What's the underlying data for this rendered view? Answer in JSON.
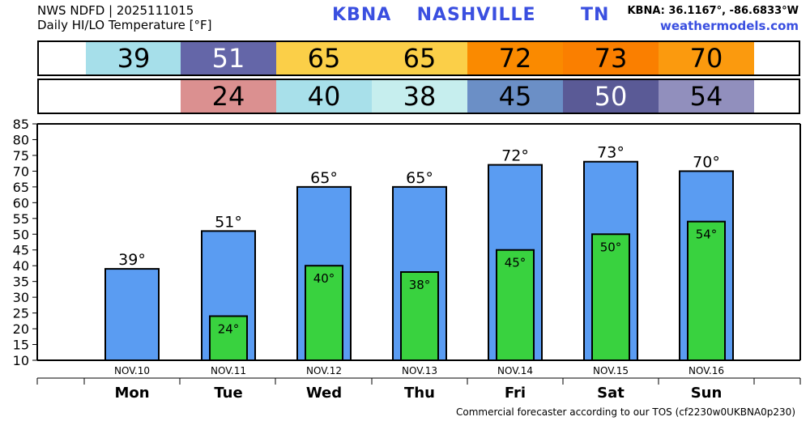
{
  "header": {
    "line1": "NWS NDFD | 2025111015",
    "line2": "Daily HI/LO Temperature [°F]",
    "station": "KBNA",
    "city": "NASHVILLE",
    "state": "TN",
    "coords": "KBNA: 36.1167°, -86.6833°W",
    "site": "weathermodels.com"
  },
  "strip_hi": [
    {
      "value": "39",
      "bg": "#a6dfea",
      "fg": "#000000"
    },
    {
      "value": "51",
      "bg": "#6466a8",
      "fg": "#ffffff"
    },
    {
      "value": "65",
      "bg": "#fbcf48",
      "fg": "#000000"
    },
    {
      "value": "65",
      "bg": "#fbcf48",
      "fg": "#000000"
    },
    {
      "value": "72",
      "bg": "#fa8a00",
      "fg": "#000000"
    },
    {
      "value": "73",
      "bg": "#fa7f00",
      "fg": "#000000"
    },
    {
      "value": "70",
      "bg": "#fb9a0e",
      "fg": "#000000"
    }
  ],
  "strip_lo": [
    {
      "value": "",
      "bg": "#ffffff",
      "fg": "#000000"
    },
    {
      "value": "24",
      "bg": "#db9090",
      "fg": "#000000"
    },
    {
      "value": "40",
      "bg": "#a8e0ea",
      "fg": "#000000"
    },
    {
      "value": "38",
      "bg": "#c6eeee",
      "fg": "#000000"
    },
    {
      "value": "45",
      "bg": "#6b8fc6",
      "fg": "#000000"
    },
    {
      "value": "50",
      "bg": "#5a5a96",
      "fg": "#ffffff"
    },
    {
      "value": "54",
      "bg": "#918fbd",
      "fg": "#000000"
    }
  ],
  "chart_data": {
    "type": "bar",
    "title": "",
    "xlabel": "",
    "ylabel": "",
    "ylim": [
      10,
      85
    ],
    "yticks": [
      10,
      15,
      20,
      25,
      30,
      35,
      40,
      45,
      50,
      55,
      60,
      65,
      70,
      75,
      80,
      85
    ],
    "categories": [
      "NOV.10",
      "NOV.11",
      "NOV.12",
      "NOV.13",
      "NOV.14",
      "NOV.15",
      "NOV.16"
    ],
    "days": [
      "Mon",
      "Tue",
      "Wed",
      "Thu",
      "Fri",
      "Sat",
      "Sun"
    ],
    "series": [
      {
        "values": [
          39,
          51,
          65,
          65,
          72,
          73,
          70
        ],
        "color": "#5a9cf2"
      },
      {
        "values": [
          null,
          24,
          40,
          38,
          45,
          50,
          54
        ],
        "color": "#39d23f"
      }
    ],
    "hi_labels": [
      "39°",
      "51°",
      "65°",
      "65°",
      "72°",
      "73°",
      "70°"
    ],
    "lo_labels": [
      "",
      "24°",
      "40°",
      "38°",
      "45°",
      "50°",
      "54°"
    ],
    "grid": false
  },
  "footer": "Commercial forecaster according to our TOS (cf2230w0UKBNA0p230)"
}
